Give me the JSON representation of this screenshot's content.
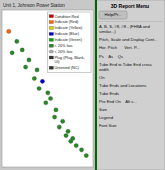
{
  "chart_data": {
    "type": "scatter",
    "subtitle": "Unit 1, Johnson Power Station",
    "x": [
      1.0,
      2.2,
      3.0,
      1.5,
      4.0,
      3.5,
      5.2,
      4.8,
      6.0,
      5.5,
      6.8,
      7.2,
      6.5,
      8.0,
      7.8,
      9.0,
      8.5,
      9.8,
      10.5,
      11.0,
      11.8,
      12.5,
      9.5,
      10.2
    ],
    "values": [
      9.5,
      8.8,
      8.2,
      8.0,
      7.5,
      7.0,
      6.8,
      6.2,
      6.0,
      5.5,
      5.2,
      4.8,
      4.5,
      4.0,
      3.5,
      3.2,
      2.8,
      2.5,
      2.0,
      1.5,
      1.2,
      0.8,
      2.2,
      1.8
    ],
    "colors": [
      "#ff6600",
      "#228B22",
      "#228B22",
      "#228B22",
      "#228B22",
      "#228B22",
      "#228B22",
      "#228B22",
      "#0000cc",
      "#228B22",
      "#228B22",
      "#228B22",
      "#228B22",
      "#228B22",
      "#228B22",
      "#228B22",
      "#228B22",
      "#228B22",
      "#228B22",
      "#228B22",
      "#228B22",
      "#228B22",
      "#228B22",
      "#228B22"
    ],
    "xlim": [
      0,
      13.5
    ],
    "ylim": [
      0,
      11
    ],
    "tick_labels": false,
    "legend": "upper right",
    "legend_items": [
      {
        "label": "Condition Red",
        "color": "#cc0000",
        "marker": "square"
      },
      {
        "label": "Indicate (Red)",
        "color": "#ff6600",
        "marker": "square"
      },
      {
        "label": "Indicate (Yellow)",
        "color": "#ddcc00",
        "marker": "square"
      },
      {
        "label": "Indicate (Blue)",
        "color": "#0000cc",
        "marker": "square"
      },
      {
        "label": "Indicate (Green)",
        "color": "#00aa00",
        "marker": "square"
      },
      {
        "label": "< 20% Iwa",
        "color": "#228B22",
        "marker": "square"
      },
      {
        "label": "< 20% Iwa",
        "color": "#aaaaaa",
        "marker": "circle"
      },
      {
        "label": "Plug (Plug, Blank, Ut)",
        "color": "#333333",
        "marker": "square"
      },
      {
        "label": "Untested (NC)",
        "color": "#333333",
        "marker": "square"
      }
    ],
    "annotations": [
      "3D Report Menu",
      "Help/Pr...",
      "A, B, S, #8, #8 - (FH8A and similar...)",
      "Pitch, Scale and Display Cont...",
      "Hor. Pitch      Vert. P...",
      "Ps    As    Qs",
      "Tube End to Tube End cross width",
      "On",
      "Tube Ends and Locations",
      "Tube Ends",
      "Pre End On    Alt s...",
      "Size",
      "Legend",
      "Font Size"
    ]
  }
}
